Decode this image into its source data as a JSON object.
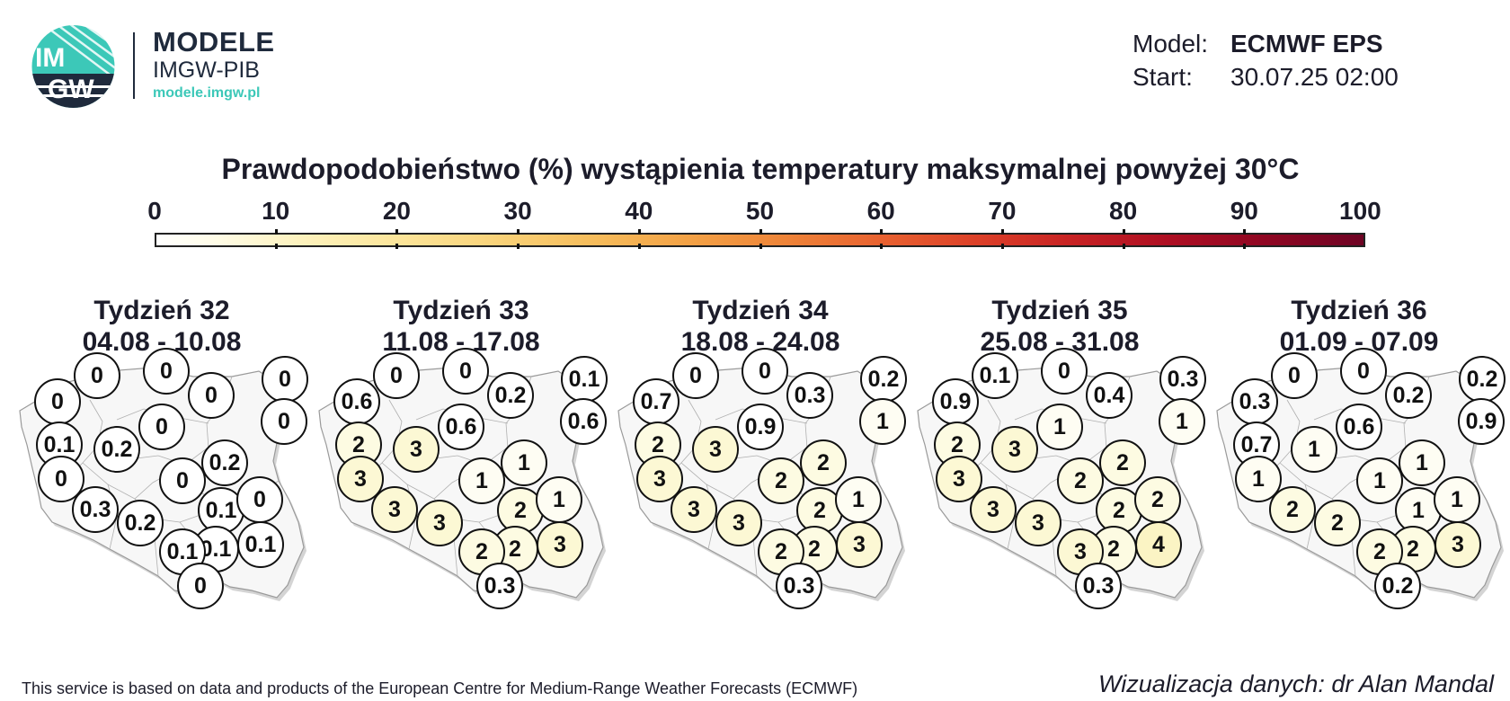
{
  "logo": {
    "emblem_text_top": "IM",
    "emblem_text_bottom": "GW",
    "title": "MODELE",
    "subtitle": "IMGW-PIB",
    "url": "modele.imgw.pl"
  },
  "info": {
    "model_label": "Model:",
    "model_value": "ECMWF EPS",
    "start_label": "Start:",
    "start_value": "30.07.25 02:00"
  },
  "title": "Prawdopodobieństwo (%) wystąpienia temperatury maksymalnej powyżej 30°C",
  "colorbar": {
    "ticks": [
      "0",
      "10",
      "20",
      "30",
      "40",
      "50",
      "60",
      "70",
      "80",
      "90",
      "100"
    ],
    "colors": {
      "0": "#ffffff",
      "10": "#fdf6cc",
      "20": "#fce59a",
      "30": "#f9d37a",
      "40": "#f6bd5c",
      "50": "#ee8438",
      "60": "#e86230",
      "70": "#dc4028",
      "80": "#c72224",
      "90": "#8e0622",
      "100": "#6e0424"
    }
  },
  "weeks": [
    {
      "label": "Tydzień 32",
      "dates": "04.08 - 10.08",
      "values": [
        "0",
        "0",
        "0",
        "0",
        "0",
        "0",
        "0",
        "0.1",
        "0.2",
        "0",
        "0.2",
        "0",
        "0.3",
        "0.1",
        "0",
        "0.2",
        "0.1",
        "0.1",
        "0.1",
        "0"
      ]
    },
    {
      "label": "Tydzień 33",
      "dates": "11.08 - 17.08",
      "values": [
        "0",
        "0",
        "0.6",
        "0.2",
        "0.1",
        "0.6",
        "0.6",
        "2",
        "3",
        "3",
        "1",
        "1",
        "3",
        "2",
        "1",
        "3",
        "2",
        "2",
        "3",
        "0.3"
      ]
    },
    {
      "label": "Tydzień 34",
      "dates": "18.08 - 24.08",
      "values": [
        "0",
        "0",
        "0.7",
        "0.3",
        "0.2",
        "0.9",
        "1",
        "2",
        "3",
        "3",
        "2",
        "2",
        "3",
        "2",
        "1",
        "3",
        "2",
        "2",
        "3",
        "0.3"
      ]
    },
    {
      "label": "Tydzień 35",
      "dates": "25.08 - 31.08",
      "values": [
        "0.1",
        "0",
        "0.9",
        "0.4",
        "0.3",
        "1",
        "1",
        "2",
        "3",
        "3",
        "2",
        "2",
        "3",
        "2",
        "2",
        "3",
        "2",
        "3",
        "4",
        "0.3"
      ]
    },
    {
      "label": "Tydzień 36",
      "dates": "01.09 - 07.09",
      "values": [
        "0",
        "0",
        "0.3",
        "0.2",
        "0.2",
        "0.6",
        "0.9",
        "0.7",
        "1",
        "1",
        "1",
        "1",
        "2",
        "1",
        "1",
        "2",
        "2",
        "2",
        "3",
        "0.2"
      ]
    }
  ],
  "footer": "This service is based on data and products of the European Centre for Medium-Range Weather Forecasts (ECMWF)",
  "credit": "Wizualizacja danych: dr Alan Mandal"
}
